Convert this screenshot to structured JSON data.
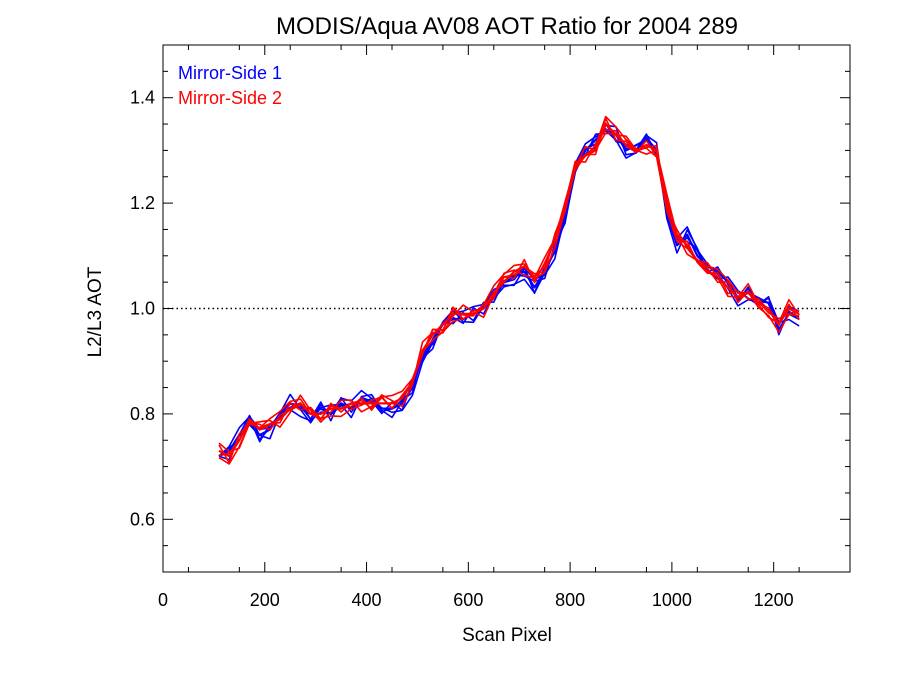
{
  "chart_data": {
    "type": "line",
    "title": "MODIS/Aqua AV08 AOT Ratio for 2004 289",
    "xlabel": "Scan Pixel",
    "ylabel": "L2/L3 AOT",
    "xlim": [
      0,
      1350
    ],
    "ylim": [
      0.5,
      1.5
    ],
    "x_ticks": [
      0,
      200,
      400,
      600,
      800,
      1000,
      1200
    ],
    "x_tick_labels": [
      "0",
      "200",
      "400",
      "600",
      "800",
      "1000",
      "1200"
    ],
    "y_ticks": [
      0.6,
      0.8,
      1.0,
      1.2,
      1.4
    ],
    "y_tick_labels": [
      "0.6",
      "0.8",
      "1.0",
      "1.2",
      "1.4"
    ],
    "reference_line": {
      "y": 1.0,
      "style": "dotted"
    },
    "grid": false,
    "legend": {
      "placement": "top-left",
      "entries": [
        "Mirror-Side 1",
        "Mirror-Side 2"
      ]
    },
    "x": [
      110,
      130,
      150,
      170,
      190,
      210,
      230,
      250,
      270,
      290,
      310,
      330,
      350,
      370,
      390,
      410,
      430,
      450,
      470,
      490,
      510,
      530,
      550,
      570,
      590,
      610,
      630,
      650,
      670,
      690,
      710,
      730,
      750,
      770,
      790,
      810,
      830,
      850,
      870,
      890,
      910,
      930,
      950,
      970,
      990,
      1010,
      1030,
      1050,
      1070,
      1090,
      1110,
      1130,
      1150,
      1170,
      1190,
      1210,
      1230,
      1250
    ],
    "series": [
      {
        "name": "Mirror-Side 1",
        "color": "#0000ff",
        "values": [
          0.72,
          0.73,
          0.76,
          0.78,
          0.76,
          0.77,
          0.8,
          0.82,
          0.81,
          0.8,
          0.81,
          0.8,
          0.82,
          0.81,
          0.83,
          0.82,
          0.81,
          0.81,
          0.82,
          0.85,
          0.91,
          0.94,
          0.97,
          0.98,
          0.98,
          0.99,
          1.0,
          1.02,
          1.05,
          1.06,
          1.07,
          1.04,
          1.07,
          1.11,
          1.17,
          1.26,
          1.3,
          1.32,
          1.34,
          1.33,
          1.3,
          1.31,
          1.32,
          1.3,
          1.18,
          1.12,
          1.14,
          1.1,
          1.08,
          1.07,
          1.05,
          1.02,
          1.03,
          1.02,
          1.01,
          0.96,
          0.99,
          0.98
        ]
      },
      {
        "name": "Mirror-Side 2",
        "color": "#ff0000",
        "values": [
          0.73,
          0.72,
          0.75,
          0.79,
          0.77,
          0.78,
          0.79,
          0.81,
          0.82,
          0.8,
          0.8,
          0.81,
          0.81,
          0.82,
          0.82,
          0.82,
          0.82,
          0.82,
          0.83,
          0.86,
          0.92,
          0.95,
          0.97,
          0.99,
          0.99,
          0.99,
          1.0,
          1.03,
          1.05,
          1.07,
          1.08,
          1.06,
          1.08,
          1.13,
          1.2,
          1.27,
          1.29,
          1.3,
          1.35,
          1.33,
          1.31,
          1.3,
          1.31,
          1.3,
          1.2,
          1.14,
          1.12,
          1.09,
          1.07,
          1.06,
          1.04,
          1.02,
          1.03,
          1.01,
          1.0,
          0.97,
          1.0,
          0.99
        ]
      }
    ]
  }
}
